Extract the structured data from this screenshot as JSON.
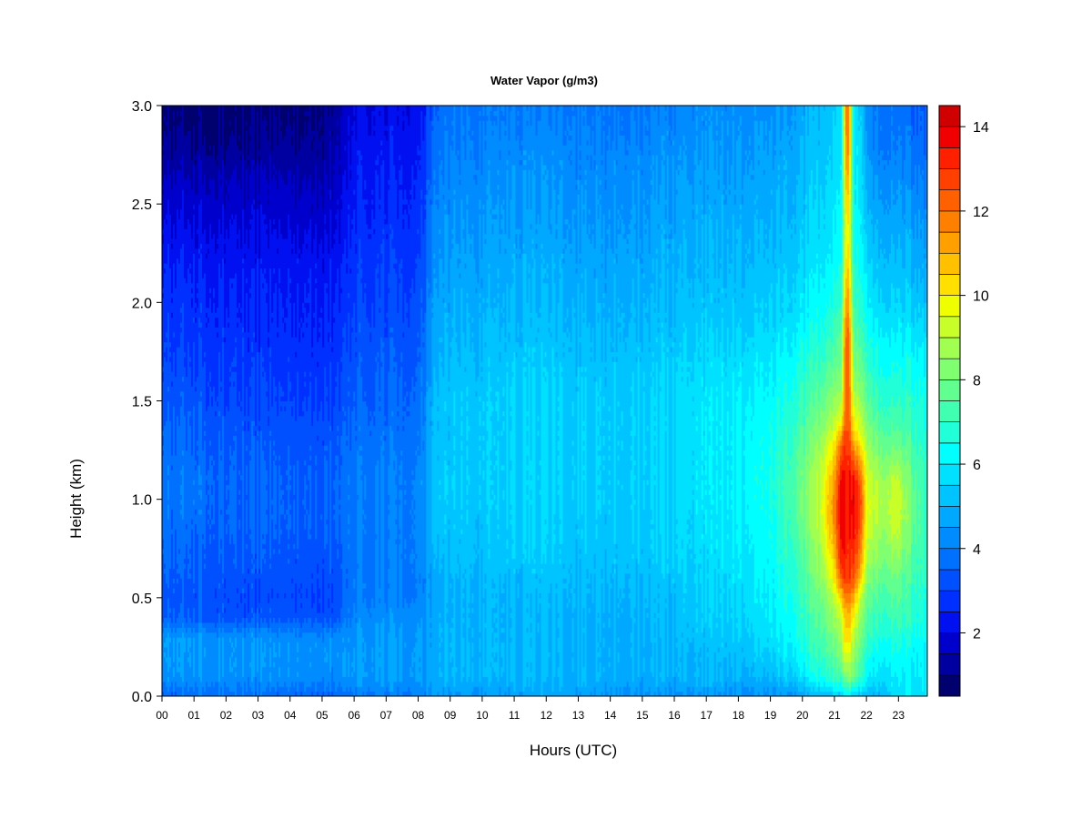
{
  "chart_data": {
    "type": "heatmap",
    "title": "Water Vapor (g/m3)",
    "xlabel": "Hours (UTC)",
    "ylabel": "Height (km)",
    "x_tick_labels": [
      "00",
      "01",
      "02",
      "03",
      "04",
      "05",
      "06",
      "07",
      "08",
      "09",
      "10",
      "11",
      "12",
      "13",
      "14",
      "15",
      "16",
      "17",
      "18",
      "19",
      "20",
      "21",
      "22",
      "23"
    ],
    "y_tick_values": [
      0.0,
      0.5,
      1.0,
      1.5,
      2.0,
      2.5,
      3.0
    ],
    "y_tick_labels": [
      "0.0",
      "0.5",
      "1.0",
      "1.5",
      "2.0",
      "2.5",
      "3.0"
    ],
    "xlim": [
      0,
      23.9
    ],
    "ylim": [
      0,
      3.0
    ],
    "colorbar": {
      "min": 0.5,
      "max": 14.5,
      "step": 0.5,
      "tick_values": [
        2,
        4,
        6,
        8,
        10,
        12,
        14
      ],
      "tick_labels": [
        "2",
        "4",
        "6",
        "8",
        "10",
        "12",
        "14"
      ],
      "colors": [
        "#00006e",
        "#0000a0",
        "#0000cd",
        "#0010f0",
        "#0030ff",
        "#0050ff",
        "#0070ff",
        "#008cff",
        "#00a8ff",
        "#00c4ff",
        "#00e0ff",
        "#00ffff",
        "#20ffd8",
        "#40ffb0",
        "#60ff90",
        "#80ff70",
        "#a0ff50",
        "#c8ff28",
        "#f0ff00",
        "#ffe000",
        "#ffc000",
        "#ffa000",
        "#ff8000",
        "#ff6000",
        "#ff4000",
        "#ff2000",
        "#f00000",
        "#d00000"
      ]
    },
    "y_heights": [
      0.0,
      0.1,
      0.2,
      0.3,
      0.4,
      0.5,
      0.6,
      0.7,
      0.8,
      0.9,
      1.0,
      1.1,
      1.2,
      1.3,
      1.4,
      1.5,
      1.6,
      1.7,
      1.8,
      1.9,
      2.0,
      2.1,
      2.2,
      2.3,
      2.4,
      2.5,
      2.6,
      2.7,
      2.8,
      2.9,
      3.0
    ],
    "x_hours": [
      0,
      1,
      2,
      3,
      4,
      5,
      5.5,
      6,
      7,
      8,
      8.5,
      9,
      10,
      11,
      12,
      13,
      14,
      15,
      16,
      17,
      18,
      19,
      20,
      20.5,
      21,
      21.2,
      21.4,
      21.6,
      21.8,
      22,
      22.5,
      22.9,
      23.5,
      23.9
    ],
    "values": [
      [
        3.6,
        3.7,
        3.8,
        3.7,
        3.6,
        3.6,
        3.6,
        4.0,
        4.0,
        4.0,
        4.3,
        4.5,
        4.5,
        4.6,
        4.6,
        4.6,
        4.5,
        4.4,
        4.3,
        4.4,
        4.4,
        4.4,
        4.5,
        5.0,
        5.2,
        5.5,
        6.0,
        5.5,
        5.2,
        5.0,
        5.2,
        5.8,
        5.8,
        5.8
      ],
      [
        4.4,
        4.4,
        4.4,
        4.3,
        4.3,
        4.3,
        4.2,
        4.6,
        4.6,
        4.5,
        4.7,
        5.0,
        5.0,
        5.0,
        5.0,
        4.9,
        4.9,
        4.9,
        4.9,
        5.0,
        5.0,
        5.1,
        5.8,
        6.5,
        7.0,
        7.5,
        8.5,
        8.0,
        7.0,
        6.0,
        5.8,
        6.0,
        6.0,
        6.0
      ],
      [
        4.5,
        4.5,
        4.4,
        4.4,
        4.4,
        4.4,
        4.3,
        4.6,
        4.6,
        4.5,
        4.7,
        5.0,
        5.0,
        5.0,
        5.0,
        4.9,
        4.9,
        4.9,
        4.9,
        5.0,
        5.2,
        5.5,
        6.3,
        7.0,
        7.5,
        8.5,
        9.5,
        8.5,
        7.5,
        6.5,
        6.2,
        6.4,
        6.2,
        6.1
      ],
      [
        4.6,
        4.5,
        4.4,
        4.3,
        4.3,
        4.3,
        4.2,
        4.5,
        4.5,
        4.5,
        4.7,
        5.0,
        5.0,
        5.0,
        5.0,
        4.9,
        4.9,
        5.0,
        5.0,
        5.2,
        5.4,
        5.8,
        6.6,
        7.3,
        8.0,
        9.0,
        10.5,
        9.0,
        8.0,
        7.0,
        6.6,
        6.8,
        6.5,
        6.3
      ],
      [
        3.5,
        3.4,
        3.3,
        3.3,
        3.3,
        3.3,
        3.3,
        4.3,
        4.3,
        4.3,
        4.6,
        4.9,
        5.0,
        5.0,
        5.0,
        4.9,
        4.9,
        5.0,
        5.1,
        5.3,
        5.6,
        6.0,
        6.8,
        7.5,
        8.5,
        9.5,
        11.0,
        10.0,
        8.5,
        7.4,
        7.0,
        7.2,
        6.8,
        6.5
      ],
      [
        3.4,
        3.3,
        3.2,
        3.1,
        3.1,
        3.1,
        3.1,
        4.1,
        4.1,
        4.0,
        4.6,
        4.9,
        5.0,
        5.0,
        5.1,
        5.0,
        5.0,
        5.1,
        5.2,
        5.4,
        5.7,
        6.1,
        7.0,
        7.8,
        9.0,
        10.5,
        12.0,
        11.0,
        9.0,
        7.8,
        7.4,
        7.6,
        7.0,
        6.6
      ],
      [
        3.5,
        3.4,
        3.3,
        3.2,
        3.2,
        3.2,
        3.2,
        4.0,
        4.0,
        3.9,
        4.6,
        5.0,
        5.0,
        5.1,
        5.2,
        5.1,
        5.1,
        5.2,
        5.3,
        5.5,
        5.8,
        6.2,
        7.2,
        8.2,
        10.0,
        12.5,
        12.8,
        12.5,
        10.5,
        8.3,
        7.8,
        8.0,
        7.2,
        6.8
      ],
      [
        3.6,
        3.5,
        3.4,
        3.3,
        3.3,
        3.3,
        3.3,
        4.0,
        4.0,
        4.0,
        4.8,
        5.1,
        5.2,
        5.3,
        5.3,
        5.2,
        5.2,
        5.3,
        5.4,
        5.6,
        5.9,
        6.3,
        7.4,
        8.5,
        10.5,
        13.5,
        13.0,
        13.0,
        11.5,
        8.8,
        8.2,
        8.5,
        7.4,
        6.9
      ],
      [
        3.7,
        3.6,
        3.5,
        3.4,
        3.4,
        3.4,
        3.4,
        4.0,
        4.0,
        4.0,
        4.9,
        5.2,
        5.3,
        5.4,
        5.4,
        5.3,
        5.3,
        5.4,
        5.5,
        5.7,
        6.0,
        6.4,
        7.6,
        8.8,
        11.0,
        13.8,
        13.2,
        13.5,
        12.0,
        9.2,
        8.5,
        9.0,
        7.6,
        7.0
      ],
      [
        3.8,
        3.7,
        3.6,
        3.5,
        3.5,
        3.5,
        3.5,
        4.0,
        4.0,
        4.0,
        5.0,
        5.3,
        5.3,
        5.4,
        5.4,
        5.3,
        5.3,
        5.4,
        5.5,
        5.7,
        6.0,
        6.5,
        7.8,
        9.0,
        11.5,
        14.0,
        13.3,
        13.8,
        12.5,
        9.5,
        8.8,
        9.4,
        7.7,
        7.0
      ],
      [
        3.9,
        3.8,
        3.6,
        3.5,
        3.5,
        3.5,
        3.5,
        4.0,
        4.0,
        4.0,
        5.1,
        5.4,
        5.4,
        5.5,
        5.5,
        5.4,
        5.4,
        5.5,
        5.6,
        5.8,
        6.1,
        6.6,
        7.9,
        9.0,
        11.5,
        14.0,
        13.3,
        13.9,
        12.6,
        9.6,
        8.9,
        9.5,
        7.7,
        7.0
      ],
      [
        3.9,
        3.8,
        3.6,
        3.5,
        3.5,
        3.5,
        3.5,
        4.0,
        4.0,
        4.0,
        5.1,
        5.4,
        5.4,
        5.5,
        5.5,
        5.4,
        5.4,
        5.5,
        5.6,
        5.8,
        6.1,
        6.6,
        7.9,
        9.0,
        11.2,
        13.8,
        13.3,
        13.5,
        12.2,
        9.4,
        8.7,
        9.2,
        7.6,
        6.9
      ],
      [
        3.8,
        3.7,
        3.5,
        3.4,
        3.4,
        3.4,
        3.4,
        3.9,
        3.9,
        3.9,
        5.0,
        5.3,
        5.4,
        5.5,
        5.5,
        5.4,
        5.4,
        5.5,
        5.6,
        5.8,
        6.1,
        6.5,
        7.7,
        8.7,
        10.5,
        13.0,
        13.2,
        12.5,
        11.0,
        9.0,
        8.2,
        8.5,
        7.4,
        6.8
      ],
      [
        3.7,
        3.6,
        3.4,
        3.3,
        3.3,
        3.3,
        3.3,
        3.8,
        3.8,
        3.8,
        5.0,
        5.3,
        5.4,
        5.5,
        5.5,
        5.4,
        5.4,
        5.5,
        5.6,
        5.8,
        6.1,
        6.5,
        7.5,
        8.4,
        9.8,
        12.0,
        13.0,
        11.0,
        9.8,
        8.5,
        7.8,
        7.8,
        7.2,
        6.7
      ],
      [
        3.6,
        3.5,
        3.3,
        3.2,
        3.2,
        3.2,
        3.2,
        3.7,
        3.7,
        3.7,
        4.9,
        5.3,
        5.4,
        5.5,
        5.5,
        5.4,
        5.4,
        5.5,
        5.6,
        5.8,
        6.1,
        6.4,
        7.2,
        8.0,
        9.0,
        10.0,
        12.8,
        10.0,
        9.0,
        8.0,
        7.4,
        7.3,
        7.0,
        6.6
      ],
      [
        3.4,
        3.3,
        3.1,
        3.0,
        3.0,
        3.0,
        3.0,
        3.6,
        3.6,
        3.6,
        4.9,
        5.3,
        5.4,
        5.5,
        5.5,
        5.4,
        5.4,
        5.5,
        5.6,
        5.8,
        6.0,
        6.3,
        7.0,
        7.6,
        8.5,
        9.2,
        12.8,
        9.2,
        8.5,
        7.6,
        7.0,
        7.0,
        6.8,
        6.5
      ],
      [
        3.3,
        3.2,
        3.0,
        2.9,
        2.9,
        2.9,
        2.9,
        3.5,
        3.5,
        3.5,
        4.8,
        5.2,
        5.3,
        5.4,
        5.4,
        5.3,
        5.3,
        5.4,
        5.5,
        5.7,
        5.9,
        6.1,
        6.8,
        7.3,
        8.0,
        8.5,
        13.0,
        8.5,
        8.0,
        7.2,
        6.7,
        6.7,
        6.6,
        6.3
      ],
      [
        3.1,
        3.0,
        2.9,
        2.8,
        2.8,
        2.8,
        2.8,
        3.4,
        3.4,
        3.4,
        4.7,
        5.1,
        5.2,
        5.3,
        5.3,
        5.2,
        5.2,
        5.3,
        5.4,
        5.6,
        5.8,
        6.0,
        6.6,
        7.0,
        7.6,
        8.2,
        13.2,
        8.2,
        7.6,
        6.9,
        6.4,
        6.4,
        6.3,
        6.1
      ],
      [
        3.0,
        2.9,
        2.8,
        2.7,
        2.7,
        2.7,
        2.7,
        3.3,
        3.3,
        3.3,
        4.6,
        5.0,
        5.1,
        5.2,
        5.2,
        5.1,
        5.1,
        5.2,
        5.3,
        5.5,
        5.6,
        5.8,
        6.3,
        6.7,
        7.2,
        8.0,
        13.0,
        8.0,
        7.2,
        6.6,
        6.2,
        6.2,
        6.0,
        5.8
      ],
      [
        2.9,
        2.8,
        2.7,
        2.6,
        2.6,
        2.6,
        2.6,
        3.2,
        3.2,
        3.2,
        4.5,
        4.9,
        5.0,
        5.1,
        5.1,
        5.0,
        5.0,
        5.1,
        5.2,
        5.3,
        5.4,
        5.6,
        6.0,
        6.4,
        6.9,
        7.6,
        12.5,
        7.6,
        6.9,
        6.3,
        5.9,
        5.9,
        5.7,
        5.5
      ],
      [
        2.8,
        2.7,
        2.6,
        2.5,
        2.5,
        2.5,
        2.5,
        3.1,
        3.1,
        3.1,
        4.4,
        4.8,
        4.9,
        5.0,
        5.0,
        4.9,
        4.9,
        5.0,
        5.1,
        5.2,
        5.3,
        5.5,
        5.8,
        6.2,
        6.6,
        7.2,
        12.0,
        7.2,
        6.6,
        6.0,
        5.6,
        5.6,
        5.4,
        5.2
      ],
      [
        2.7,
        2.6,
        2.5,
        2.4,
        2.4,
        2.4,
        2.4,
        3.0,
        3.0,
        3.0,
        4.3,
        4.7,
        4.8,
        4.9,
        4.9,
        4.8,
        4.8,
        4.9,
        5.0,
        5.1,
        5.2,
        5.4,
        5.7,
        6.0,
        6.4,
        7.0,
        11.5,
        7.0,
        6.4,
        5.8,
        5.4,
        5.4,
        5.2,
        5.0
      ],
      [
        2.5,
        2.4,
        2.3,
        2.3,
        2.3,
        2.3,
        2.3,
        2.9,
        2.9,
        2.9,
        4.2,
        4.6,
        4.7,
        4.8,
        4.8,
        4.7,
        4.7,
        4.8,
        4.9,
        5.0,
        5.1,
        5.2,
        5.5,
        5.8,
        6.2,
        6.8,
        11.0,
        6.8,
        6.2,
        5.6,
        5.2,
        5.2,
        5.0,
        4.8
      ],
      [
        2.3,
        2.2,
        2.2,
        2.1,
        2.1,
        2.1,
        2.1,
        2.8,
        2.8,
        2.8,
        4.1,
        4.5,
        4.6,
        4.7,
        4.7,
        4.6,
        4.6,
        4.7,
        4.8,
        4.9,
        5.0,
        5.1,
        5.4,
        5.7,
        6.0,
        6.6,
        10.5,
        6.6,
        6.0,
        5.4,
        5.0,
        5.0,
        4.8,
        4.6
      ],
      [
        2.1,
        2.0,
        2.0,
        1.9,
        1.9,
        1.9,
        1.9,
        2.7,
        2.7,
        2.7,
        4.0,
        4.4,
        4.5,
        4.6,
        4.6,
        4.5,
        4.5,
        4.6,
        4.7,
        4.8,
        4.9,
        5.0,
        5.3,
        5.6,
        5.9,
        6.5,
        10.5,
        6.5,
        5.9,
        5.2,
        4.8,
        4.8,
        4.6,
        4.4
      ],
      [
        1.9,
        1.8,
        1.7,
        1.7,
        1.7,
        1.7,
        1.8,
        2.6,
        2.6,
        2.6,
        3.9,
        4.3,
        4.4,
        4.5,
        4.5,
        4.4,
        4.4,
        4.5,
        4.6,
        4.7,
        4.8,
        4.9,
        5.2,
        5.5,
        5.8,
        6.4,
        11.0,
        6.4,
        5.8,
        5.0,
        4.6,
        4.6,
        4.4,
        4.2
      ],
      [
        1.7,
        1.6,
        1.6,
        1.6,
        1.6,
        1.6,
        1.7,
        2.5,
        2.5,
        2.5,
        3.8,
        4.2,
        4.3,
        4.4,
        4.4,
        4.3,
        4.3,
        4.4,
        4.5,
        4.6,
        4.7,
        4.8,
        5.1,
        5.4,
        5.7,
        6.3,
        11.5,
        6.3,
        5.7,
        4.8,
        4.4,
        4.4,
        4.2,
        4.0
      ],
      [
        1.4,
        1.3,
        1.3,
        1.3,
        1.3,
        1.3,
        1.5,
        2.4,
        2.4,
        2.4,
        3.6,
        4.1,
        4.2,
        4.3,
        4.3,
        4.2,
        4.2,
        4.3,
        4.4,
        4.5,
        4.6,
        4.7,
        5.0,
        5.3,
        5.6,
        6.2,
        12.0,
        6.2,
        5.6,
        4.6,
        4.2,
        4.2,
        4.0,
        3.8
      ],
      [
        1.2,
        1.1,
        1.1,
        1.1,
        1.2,
        1.2,
        1.4,
        2.3,
        2.3,
        2.3,
        3.5,
        4.0,
        4.1,
        4.2,
        4.2,
        4.1,
        4.1,
        4.2,
        4.3,
        4.4,
        4.5,
        4.6,
        4.9,
        5.2,
        5.5,
        6.1,
        12.5,
        6.1,
        5.5,
        4.4,
        4.0,
        4.0,
        3.8,
        3.6
      ],
      [
        1.0,
        0.9,
        0.9,
        0.9,
        1.0,
        1.1,
        1.3,
        2.2,
        2.2,
        2.2,
        3.4,
        3.9,
        4.0,
        4.1,
        4.1,
        4.0,
        4.0,
        4.1,
        4.2,
        4.3,
        4.4,
        4.5,
        4.8,
        5.1,
        5.4,
        6.0,
        12.8,
        6.0,
        5.4,
        4.3,
        3.9,
        3.9,
        3.7,
        3.5
      ],
      [
        0.9,
        0.8,
        0.8,
        0.8,
        0.9,
        1.0,
        1.2,
        2.1,
        2.1,
        2.1,
        3.3,
        3.8,
        3.9,
        4.0,
        4.0,
        3.9,
        3.9,
        4.0,
        4.1,
        4.2,
        4.3,
        4.4,
        4.7,
        5.0,
        5.3,
        5.9,
        13.0,
        5.9,
        5.3,
        4.2,
        3.8,
        3.8,
        3.6,
        3.4
      ]
    ]
  }
}
